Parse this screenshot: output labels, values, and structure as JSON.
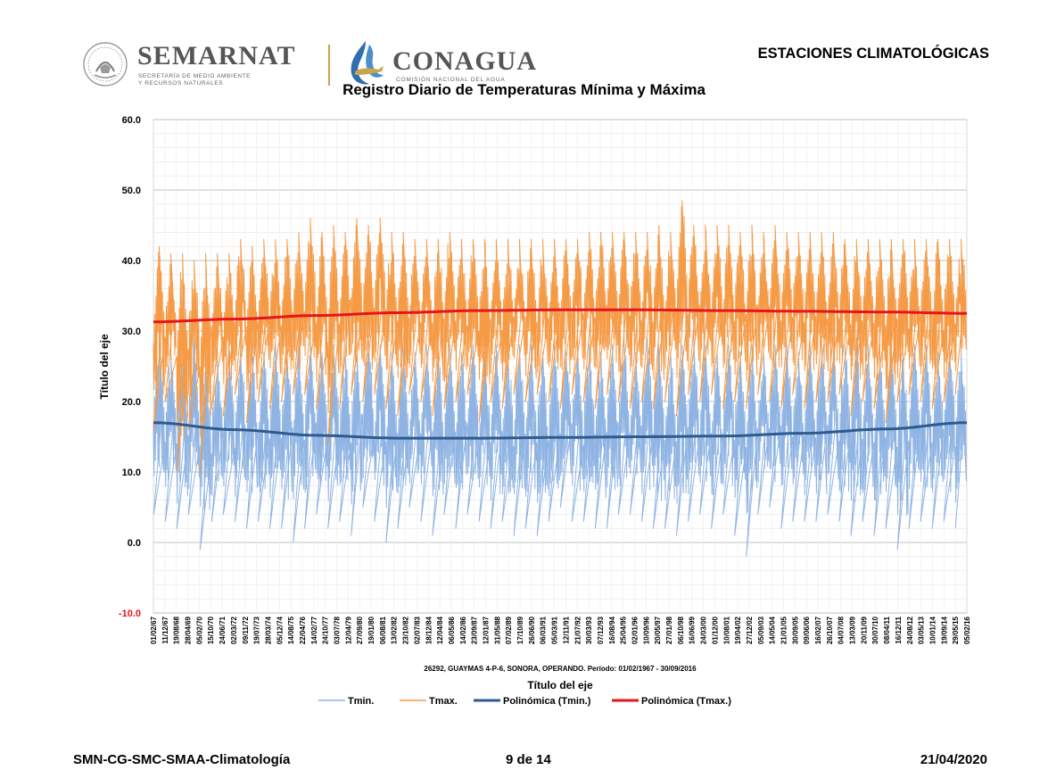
{
  "header": {
    "logo1_name": "SEMARNAT",
    "logo1_sub_line1": "SECRETARÍA DE MEDIO AMBIENTE",
    "logo1_sub_line2": "Y RECURSOS NATURALES",
    "logo2_name": "CONAGUA",
    "logo2_sub": "COMISIÓN NACIONAL DEL AGUA",
    "doc_title": "ESTACIONES CLIMATOLÓGICAS"
  },
  "footer": {
    "left": "SMN-CG-SMC-SMAA-Climatología",
    "center": "9 de 14",
    "right": "21/04/2020"
  },
  "colors": {
    "tmin": "#8fb4e3",
    "tmax": "#f59a45",
    "poly_tmin": "#2e5a8e",
    "poly_tmax": "#e4151c",
    "grid": "#d9d9d9",
    "axis_text": "#000000",
    "ymin_label": "#e4151c"
  },
  "chart_data": {
    "type": "line",
    "title": "Registro Diario de Temperaturas Mínima y Máxima",
    "subtitle": "26292, GUAYMAS 4-P-6, SONORA, OPERANDO. Período: 01/02/1967 - 30/09/2016",
    "xlabel": "Título del eje",
    "ylabel": "Título del eje",
    "ylim": [
      -10,
      60
    ],
    "yticks": [
      "60.0",
      "50.0",
      "40.0",
      "30.0",
      "20.0",
      "10.0",
      "0.0",
      "-10.0"
    ],
    "grid": true,
    "legend_position": "bottom",
    "x_range": [
      "01/02/1967",
      "30/09/2016"
    ],
    "x_tick_labels": [
      "01/02/67",
      "11/12/67",
      "19/08/68",
      "28/04/69",
      "05/02/70",
      "15/10/70",
      "24/06/71",
      "02/03/72",
      "09/11/72",
      "19/07/73",
      "28/03/74",
      "05/12/74",
      "14/08/75",
      "22/04/76",
      "14/02/77",
      "24/10/77",
      "03/07/78",
      "12/04/79",
      "27/09/80",
      "19/01/80",
      "06/08/81",
      "13/02/82",
      "23/10/82",
      "02/07/83",
      "18/12/84",
      "12/04/84",
      "06/05/86",
      "14/02/86",
      "23/09/87",
      "12/01/87",
      "31/05/88",
      "07/02/89",
      "17/10/89",
      "26/06/90",
      "06/03/91",
      "05/03/91",
      "12/11/91",
      "21/07/92",
      "30/03/93",
      "07/12/93",
      "16/08/94",
      "25/04/95",
      "02/01/96",
      "10/09/96",
      "20/05/97",
      "27/01/98",
      "06/10/98",
      "16/06/99",
      "24/03/00",
      "01/12/00",
      "10/08/01",
      "19/04/02",
      "27/12/02",
      "05/09/03",
      "14/05/04",
      "21/01/05",
      "30/09/05",
      "09/06/06",
      "16/02/07",
      "26/10/07",
      "04/07/08",
      "13/03/09",
      "20/11/09",
      "30/07/10",
      "08/04/11",
      "16/12/11",
      "24/08/12",
      "03/05/13",
      "10/01/14",
      "19/09/14",
      "29/05/15",
      "05/02/16"
    ],
    "series": [
      {
        "name": "Tmin.",
        "style": "daily-line",
        "seasonal_min": [
          4,
          3,
          2,
          4,
          -1,
          3,
          4,
          3,
          2,
          3,
          2,
          2,
          0,
          2,
          4,
          2,
          3,
          1,
          5,
          3,
          0,
          2,
          5,
          3,
          1,
          4,
          2,
          4,
          3,
          2,
          3,
          1,
          2,
          1,
          3,
          5,
          3,
          3,
          2,
          2,
          4,
          4,
          3,
          2,
          2,
          1,
          3,
          4,
          2,
          4,
          1,
          -2,
          4,
          5,
          2,
          3,
          3,
          3,
          4,
          3,
          1,
          3,
          1,
          2,
          -1,
          2,
          3,
          2,
          3,
          2
        ],
        "seasonal_max": [
          28,
          27,
          28,
          29,
          27,
          26,
          28,
          27,
          28,
          27,
          28,
          27,
          28,
          29,
          27,
          28,
          27,
          28,
          29,
          28,
          27,
          28,
          27,
          28,
          27,
          28,
          27,
          28,
          27,
          28,
          27,
          28,
          28,
          27,
          28,
          27,
          28,
          28,
          27,
          28,
          28,
          27,
          29,
          28,
          27,
          28,
          29,
          28,
          27,
          28,
          27,
          28,
          27,
          28,
          28,
          27,
          28,
          28,
          27,
          28,
          29,
          28,
          27,
          28,
          27,
          28,
          28,
          27,
          28,
          27
        ]
      },
      {
        "name": "Tmax.",
        "style": "daily-line",
        "seasonal_min": [
          16,
          20,
          10,
          16,
          10,
          19,
          18,
          21,
          17,
          20,
          19,
          20,
          21,
          21,
          19,
          14,
          19,
          21,
          20,
          21,
          19,
          18,
          21,
          20,
          18,
          19,
          20,
          21,
          17,
          20,
          19,
          21,
          20,
          21,
          20,
          19,
          21,
          20,
          19,
          21,
          20,
          19,
          20,
          19,
          20,
          18,
          21,
          20,
          21,
          19,
          20,
          19,
          21,
          20,
          19,
          21,
          19,
          20,
          20,
          21,
          18,
          20,
          19,
          17,
          20,
          21,
          20,
          19,
          20,
          21
        ],
        "seasonal_max": [
          42,
          41,
          41,
          40,
          41,
          41,
          41,
          43,
          42,
          43,
          43,
          43,
          44,
          46,
          44,
          45,
          44,
          46,
          45,
          46,
          44,
          44,
          43,
          43,
          43,
          44,
          43,
          43,
          43,
          43,
          43,
          43,
          43,
          43,
          43,
          43,
          43,
          44,
          44,
          44,
          44,
          44,
          44,
          45,
          44,
          48.5,
          45,
          45,
          45,
          45,
          44,
          45,
          44,
          45,
          44,
          44,
          44,
          44,
          44,
          43,
          43,
          43,
          43,
          43,
          43,
          43,
          43,
          43,
          43,
          43
        ]
      },
      {
        "name": "Polinómica (Tmin.)",
        "style": "trend",
        "x_fraction": [
          0,
          0.1,
          0.2,
          0.3,
          0.4,
          0.5,
          0.6,
          0.7,
          0.8,
          0.9,
          1.0
        ],
        "values": [
          17.0,
          16.0,
          15.2,
          14.8,
          14.8,
          14.9,
          15.0,
          15.1,
          15.5,
          16.1,
          17.0
        ]
      },
      {
        "name": "Polinómica (Tmax.)",
        "style": "trend",
        "x_fraction": [
          0,
          0.1,
          0.2,
          0.3,
          0.4,
          0.5,
          0.6,
          0.7,
          0.8,
          0.9,
          1.0
        ],
        "values": [
          31.3,
          31.7,
          32.2,
          32.6,
          32.9,
          33.0,
          33.0,
          32.9,
          32.8,
          32.7,
          32.5
        ]
      }
    ]
  }
}
